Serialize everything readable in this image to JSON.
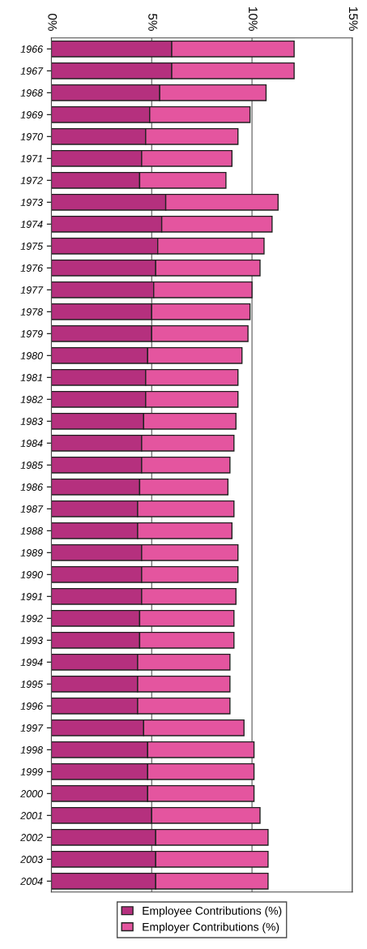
{
  "chart_data": {
    "type": "bar",
    "orientation": "horizontal",
    "stacked": true,
    "categories": [
      "1966",
      "1967",
      "1968",
      "1969",
      "1970",
      "1971",
      "1972",
      "1973",
      "1974",
      "1975",
      "1976",
      "1977",
      "1978",
      "1979",
      "1980",
      "1981",
      "1982",
      "1983",
      "1984",
      "1985",
      "1986",
      "1987",
      "1988",
      "1989",
      "1990",
      "1991",
      "1992",
      "1993",
      "1994",
      "1995",
      "1996",
      "1997",
      "1998",
      "1999",
      "2000",
      "2001",
      "2002",
      "2003",
      "2004"
    ],
    "series": [
      {
        "name": "Employee Contributions (%)",
        "color": "#b5307e",
        "values": [
          6.0,
          6.0,
          5.4,
          4.9,
          4.7,
          4.5,
          4.4,
          5.7,
          5.5,
          5.3,
          5.2,
          5.1,
          5.0,
          5.0,
          4.8,
          4.7,
          4.7,
          4.6,
          4.5,
          4.5,
          4.4,
          4.3,
          4.3,
          4.5,
          4.5,
          4.5,
          4.4,
          4.4,
          4.3,
          4.3,
          4.3,
          4.6,
          4.8,
          4.8,
          4.8,
          5.0,
          5.2,
          5.2,
          5.2
        ]
      },
      {
        "name": "Employer Contributions (%)",
        "color": "#e4559f",
        "values": [
          6.1,
          6.1,
          5.3,
          5.0,
          4.6,
          4.5,
          4.3,
          5.6,
          5.5,
          5.3,
          5.2,
          4.9,
          4.9,
          4.8,
          4.7,
          4.6,
          4.6,
          4.6,
          4.6,
          4.4,
          4.4,
          4.8,
          4.7,
          4.8,
          4.8,
          4.7,
          4.7,
          4.7,
          4.6,
          4.6,
          4.6,
          5.0,
          5.3,
          5.3,
          5.3,
          5.4,
          5.6,
          5.6,
          5.6
        ]
      }
    ],
    "xlim": [
      0,
      15
    ],
    "xticks": [
      {
        "value": 0,
        "label": "0%"
      },
      {
        "value": 5,
        "label": "5%"
      },
      {
        "value": 10,
        "label": "10%"
      },
      {
        "value": 15,
        "label": "15%"
      }
    ],
    "grid": "x",
    "legend": "bottom"
  }
}
